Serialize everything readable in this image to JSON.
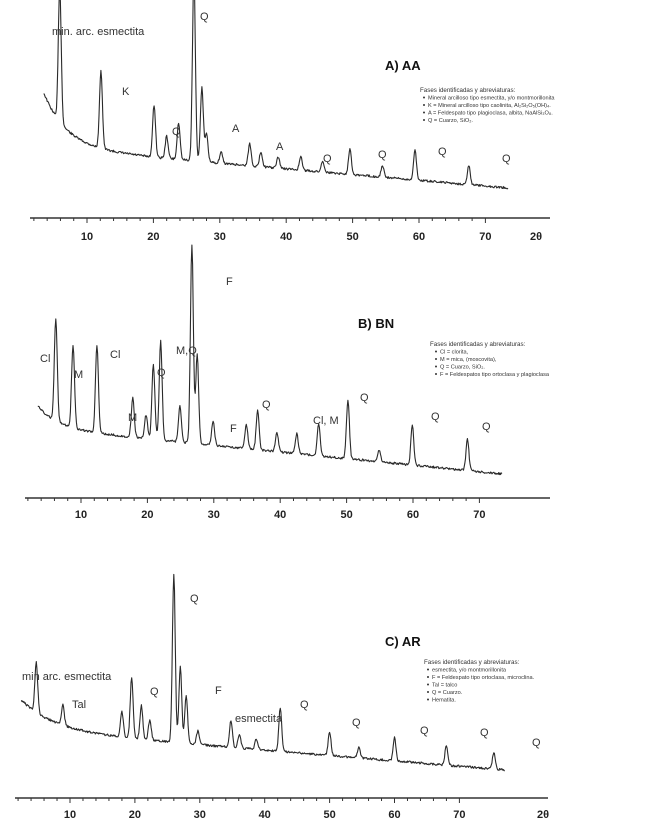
{
  "chart_data": [
    {
      "type": "line",
      "title": "A) AA",
      "xlabel": "2θ",
      "xlim": [
        2,
        73
      ],
      "x_ticks": [
        "10",
        "20",
        "30",
        "40",
        "50",
        "60",
        "70"
      ],
      "legend": {
        "title": "Fases identificadas y abreviaturas:",
        "items": [
          "Mineral arcilloso tipo esmectita, y/o montmorillonita",
          "K = Mineral arcilloso tipo caolinita, Al₂Si₂O₅(OH)₄.",
          "A = Feldespato tipo plagioclasa, albita, NaAlSi₃O₈.",
          "Q = Cuarzo, SiO₂."
        ]
      },
      "peaks": [
        {
          "x": 5.9,
          "h": 0.72,
          "label": "min. arc. esmectita"
        },
        {
          "x": 12.1,
          "h": 0.42,
          "label": "K"
        },
        {
          "x": 20.1,
          "h": 0.28
        },
        {
          "x": 22.0,
          "h": 0.12,
          "label": "Q"
        },
        {
          "x": 23.8,
          "h": 0.2
        },
        {
          "x": 26.1,
          "h": 1.0,
          "label": "Q"
        },
        {
          "x": 27.3,
          "h": 0.4
        },
        {
          "x": 28.0,
          "h": 0.15,
          "label": "A"
        },
        {
          "x": 30.2,
          "h": 0.06
        },
        {
          "x": 34.5,
          "h": 0.12
        },
        {
          "x": 36.2,
          "h": 0.08,
          "label": "A"
        },
        {
          "x": 38.8,
          "h": 0.06
        },
        {
          "x": 42.2,
          "h": 0.07
        },
        {
          "x": 45.5,
          "h": 0.06,
          "label": "Q"
        },
        {
          "x": 49.6,
          "h": 0.14,
          "label": "Q"
        },
        {
          "x": 54.5,
          "h": 0.06,
          "label": "Q"
        },
        {
          "x": 59.4,
          "h": 0.16,
          "label": "Q"
        },
        {
          "x": 67.5,
          "h": 0.1,
          "label": "Q"
        }
      ]
    },
    {
      "type": "line",
      "title": "B) BN",
      "xlabel": "",
      "xlim": [
        2,
        73
      ],
      "x_ticks": [
        "10",
        "20",
        "30",
        "40",
        "50",
        "60",
        "70"
      ],
      "legend": {
        "title": "Fases identificadas y abreviaturas:",
        "items": [
          "Cl = clorita,",
          "M = mica, (moscovita),",
          "Q = Cuarzo, SiO₂.",
          "F = Feldespatos tipo ortoclasa y plagioclasa"
        ]
      },
      "peaks": [
        {
          "x": 6.2,
          "h": 0.52,
          "label": "Cl"
        },
        {
          "x": 8.8,
          "h": 0.42,
          "label": "M"
        },
        {
          "x": 12.4,
          "h": 0.44,
          "label": "Cl"
        },
        {
          "x": 17.8,
          "h": 0.2,
          "label": "M"
        },
        {
          "x": 19.8,
          "h": 0.12
        },
        {
          "x": 20.9,
          "h": 0.38
        },
        {
          "x": 22.0,
          "h": 0.5,
          "label": "Q"
        },
        {
          "x": 24.9,
          "h": 0.18,
          "label": "F"
        },
        {
          "x": 26.7,
          "h": 1.0,
          "label": "M,Q"
        },
        {
          "x": 27.5,
          "h": 0.45
        },
        {
          "x": 29.9,
          "h": 0.12,
          "label": "F"
        },
        {
          "x": 34.9,
          "h": 0.12
        },
        {
          "x": 36.6,
          "h": 0.2,
          "label": "Q"
        },
        {
          "x": 39.5,
          "h": 0.1
        },
        {
          "x": 42.5,
          "h": 0.1
        },
        {
          "x": 45.8,
          "h": 0.16,
          "label": "Cl, M"
        },
        {
          "x": 50.2,
          "h": 0.3,
          "label": "Q"
        },
        {
          "x": 54.9,
          "h": 0.06
        },
        {
          "x": 59.9,
          "h": 0.2,
          "label": "Q"
        },
        {
          "x": 68.2,
          "h": 0.16,
          "label": "Q"
        }
      ]
    },
    {
      "type": "line",
      "title": "C) AR",
      "xlabel": "2θ",
      "xlim": [
        2,
        73
      ],
      "x_ticks": [
        "10",
        "20",
        "30",
        "40",
        "50",
        "60",
        "70"
      ],
      "legend": {
        "title": "Fases identificadas y abreviaturas:",
        "items": [
          "esmectita, y/o montmorillonita",
          "F = Feldespato tipo ortoclasa, microclina.",
          "Tal = talco",
          "Q = Cuarzo.",
          "Hematita."
        ]
      },
      "peaks": [
        {
          "x": 4.8,
          "h": 0.3,
          "label": "min arc. esmectita"
        },
        {
          "x": 8.9,
          "h": 0.12,
          "label": "Tal"
        },
        {
          "x": 18.0,
          "h": 0.15
        },
        {
          "x": 19.5,
          "h": 0.36
        },
        {
          "x": 21.0,
          "h": 0.2,
          "label": "Q"
        },
        {
          "x": 22.3,
          "h": 0.12
        },
        {
          "x": 26.0,
          "h": 1.0,
          "label": "Q"
        },
        {
          "x": 27.0,
          "h": 0.45,
          "label": "F"
        },
        {
          "x": 27.9,
          "h": 0.28
        },
        {
          "x": 29.7,
          "h": 0.08
        },
        {
          "x": 34.8,
          "h": 0.16,
          "label": "esmectita"
        },
        {
          "x": 36.1,
          "h": 0.08
        },
        {
          "x": 38.7,
          "h": 0.06
        },
        {
          "x": 42.4,
          "h": 0.26,
          "label": "Q"
        },
        {
          "x": 50.0,
          "h": 0.14,
          "label": "Q"
        },
        {
          "x": 54.5,
          "h": 0.06,
          "label": "Q"
        },
        {
          "x": 60.0,
          "h": 0.14,
          "label": "Q"
        },
        {
          "x": 68.0,
          "h": 0.12,
          "label": "Q"
        },
        {
          "x": 75.3,
          "h": 0.1,
          "label": "Q"
        }
      ]
    }
  ]
}
